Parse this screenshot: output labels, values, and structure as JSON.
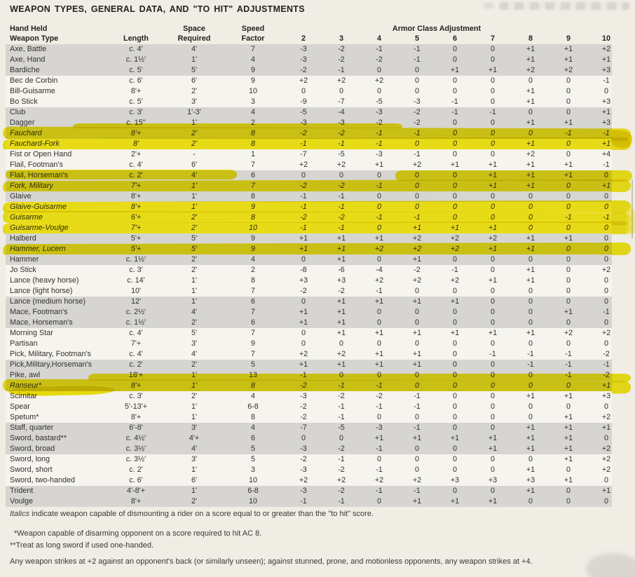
{
  "page": {
    "title": "WEAPON TYPES, GENERAL DATA, AND \"TO HIT\" ADJUSTMENTS"
  },
  "colors": {
    "page_bg": "#f0ede5",
    "shaded_row": "#d6d5d1",
    "highlighter_yellow": "#f0e40c",
    "text": "#33312c"
  },
  "table": {
    "header": {
      "hand_held": "Hand Held",
      "weapon_type": "Weapon Type",
      "length": "Length",
      "space": "Space",
      "required": "Required",
      "speed": "Speed",
      "factor": "Factor",
      "ac_group": "Armor Class Adjustment",
      "ac_values": [
        "2",
        "3",
        "4",
        "5",
        "6",
        "7",
        "8",
        "9",
        "10"
      ]
    },
    "rows": [
      {
        "name": "Axe, Battle",
        "length": "c. 4'",
        "space": "4'",
        "speed": "7",
        "ac": [
          "-3",
          "-2",
          "-1",
          "-1",
          "0",
          "0",
          "+1",
          "+1",
          "+2"
        ],
        "shaded": true,
        "italic": false,
        "hl": null
      },
      {
        "name": "Axe, Hand",
        "length": "c. 1½'",
        "space": "1'",
        "speed": "4",
        "ac": [
          "-3",
          "-2",
          "-2",
          "-1",
          "0",
          "0",
          "+1",
          "+1",
          "+1"
        ],
        "shaded": true,
        "italic": false,
        "hl": null
      },
      {
        "name": "Bardiche",
        "length": "c. 5'",
        "space": "5'",
        "speed": "9",
        "ac": [
          "-2",
          "-1",
          "0",
          "0",
          "+1",
          "+1",
          "+2",
          "+2",
          "+3"
        ],
        "shaded": true,
        "italic": false,
        "hl": null
      },
      {
        "name": "Bec de Corbin",
        "length": "c. 6'",
        "space": "6'",
        "speed": "9",
        "ac": [
          "+2",
          "+2",
          "+2",
          "0",
          "0",
          "0",
          "0",
          "0",
          "-1"
        ],
        "shaded": false,
        "italic": false,
        "hl": null
      },
      {
        "name": "Bill-Guisarme",
        "length": "8'+",
        "space": "2'",
        "speed": "10",
        "ac": [
          "0",
          "0",
          "0",
          "0",
          "0",
          "0",
          "+1",
          "0",
          "0"
        ],
        "shaded": false,
        "italic": false,
        "hl": null
      },
      {
        "name": "Bo Stick",
        "length": "c. 5'",
        "space": "3'",
        "speed": "3",
        "ac": [
          "-9",
          "-7",
          "-5",
          "-3",
          "-1",
          "0",
          "+1",
          "0",
          "+3"
        ],
        "shaded": false,
        "italic": false,
        "hl": null
      },
      {
        "name": "Club",
        "length": "c. 3'",
        "space": "1'-3'",
        "speed": "4",
        "ac": [
          "-5",
          "-4",
          "-3",
          "-2",
          "-1",
          "-1",
          "0",
          "0",
          "+1"
        ],
        "shaded": true,
        "italic": false,
        "hl": null
      },
      {
        "name": "Dagger",
        "length": "c. 15''",
        "space": "1'",
        "speed": "2",
        "ac": [
          "-3",
          "-3",
          "-2",
          "-2",
          "0",
          "0",
          "+1",
          "+1",
          "+3"
        ],
        "shaded": true,
        "italic": false,
        "hl": "partial"
      },
      {
        "name": "Fauchard",
        "length": "8'+",
        "space": "2'",
        "speed": "8",
        "ac": [
          "-2",
          "-2",
          "-1",
          "-1",
          "0",
          "0",
          "0",
          "-1",
          "-1"
        ],
        "shaded": true,
        "italic": true,
        "hl": "full"
      },
      {
        "name": "Fauchard-Fork",
        "length": "8'",
        "space": "2'",
        "speed": "8",
        "ac": [
          "-1",
          "-1",
          "-1",
          "0",
          "0",
          "0",
          "+1",
          "0",
          "+1"
        ],
        "shaded": false,
        "italic": true,
        "hl": "full"
      },
      {
        "name": "Fist or Open Hand",
        "length": "2'+",
        "space": "-",
        "speed": "1",
        "ac": [
          "-7",
          "-5",
          "-3",
          "-1",
          "0",
          "0",
          "+2",
          "0",
          "+4"
        ],
        "shaded": false,
        "italic": false,
        "hl": null
      },
      {
        "name": "Flail, Footman's",
        "length": "c. 4'",
        "space": "6'",
        "speed": "7",
        "ac": [
          "+2",
          "+2",
          "+1",
          "+2",
          "+1",
          "+1",
          "+1",
          "+1",
          "-1"
        ],
        "shaded": false,
        "italic": false,
        "hl": null
      },
      {
        "name": "Flail, Horseman's",
        "length": "c. 2'",
        "space": "4'",
        "speed": "6",
        "ac": [
          "0",
          "0",
          "0",
          "0",
          "0",
          "+1",
          "+1",
          "+1",
          "0"
        ],
        "shaded": true,
        "italic": false,
        "hl": "partial"
      },
      {
        "name": "Fork, Military",
        "length": "7'+",
        "space": "1'",
        "speed": "7",
        "ac": [
          "-2",
          "-2",
          "-1",
          "0",
          "0",
          "+1",
          "+1",
          "0",
          "+1"
        ],
        "shaded": true,
        "italic": true,
        "hl": "full"
      },
      {
        "name": "Glaive",
        "length": "8'+",
        "space": "1'",
        "speed": "8",
        "ac": [
          "-1",
          "-1",
          "0",
          "0",
          "0",
          "0",
          "0",
          "0",
          "0"
        ],
        "shaded": true,
        "italic": false,
        "hl": null
      },
      {
        "name": "Glaive-Guisarme",
        "length": "8'+",
        "space": "1'",
        "speed": "9",
        "ac": [
          "-1",
          "-1",
          "0",
          "0",
          "0",
          "0",
          "0",
          "0",
          "0"
        ],
        "shaded": false,
        "italic": true,
        "hl": "full"
      },
      {
        "name": "Guisarme",
        "length": "6'+",
        "space": "2'",
        "speed": "8",
        "ac": [
          "-2",
          "-2",
          "-1",
          "-1",
          "0",
          "0",
          "0",
          "-1",
          "-1"
        ],
        "shaded": false,
        "italic": true,
        "hl": "full"
      },
      {
        "name": "Guisarme-Voulge",
        "length": "7'+",
        "space": "2'",
        "speed": "10",
        "ac": [
          "-1",
          "-1",
          "0",
          "+1",
          "+1",
          "+1",
          "0",
          "0",
          "0"
        ],
        "shaded": false,
        "italic": true,
        "hl": "full"
      },
      {
        "name": "Halberd",
        "length": "5'+",
        "space": "5'",
        "speed": "9",
        "ac": [
          "+1",
          "+1",
          "+1",
          "+2",
          "+2",
          "+2",
          "+1",
          "+1",
          "0"
        ],
        "shaded": true,
        "italic": false,
        "hl": null
      },
      {
        "name": "Hammer, Lucern",
        "length": "5'+",
        "space": "5'",
        "speed": "9",
        "ac": [
          "+1",
          "+1",
          "+2",
          "+2",
          "+2",
          "+1",
          "+1",
          "0",
          "0"
        ],
        "shaded": true,
        "italic": true,
        "hl": "full"
      },
      {
        "name": "Hammer",
        "length": "c. 1½'",
        "space": "2'",
        "speed": "4",
        "ac": [
          "0",
          "+1",
          "0",
          "+1",
          "0",
          "0",
          "0",
          "0",
          "0"
        ],
        "shaded": true,
        "italic": false,
        "hl": null
      },
      {
        "name": "Jo Stick",
        "length": "c. 3'",
        "space": "2'",
        "speed": "2",
        "ac": [
          "-8",
          "-6",
          "-4",
          "-2",
          "-1",
          "0",
          "+1",
          "0",
          "+2"
        ],
        "shaded": false,
        "italic": false,
        "hl": null
      },
      {
        "name": "Lance (heavy horse)",
        "length": "c. 14'",
        "space": "1'",
        "speed": "8",
        "ac": [
          "+3",
          "+3",
          "+2",
          "+2",
          "+2",
          "+1",
          "+1",
          "0",
          "0"
        ],
        "shaded": false,
        "italic": false,
        "hl": null
      },
      {
        "name": "Lance (light horse)",
        "length": "10'",
        "space": "1'",
        "speed": "7",
        "ac": [
          "-2",
          "-2",
          "-1",
          "0",
          "0",
          "0",
          "0",
          "0",
          "0"
        ],
        "shaded": false,
        "italic": false,
        "hl": null
      },
      {
        "name": "Lance (medium horse)",
        "length": "12'",
        "space": "1'",
        "speed": "6",
        "ac": [
          "0",
          "+1",
          "+1",
          "+1",
          "+1",
          "0",
          "0",
          "0",
          "0"
        ],
        "shaded": true,
        "italic": false,
        "hl": null
      },
      {
        "name": "Mace, Footman's",
        "length": "c. 2½'",
        "space": "4'",
        "speed": "7",
        "ac": [
          "+1",
          "+1",
          "0",
          "0",
          "0",
          "0",
          "0",
          "+1",
          "-1"
        ],
        "shaded": true,
        "italic": false,
        "hl": null
      },
      {
        "name": "Mace, Horseman's",
        "length": "c. 1½'",
        "space": "2'",
        "speed": "6",
        "ac": [
          "+1",
          "+1",
          "0",
          "0",
          "0",
          "0",
          "0",
          "0",
          "0"
        ],
        "shaded": true,
        "italic": false,
        "hl": null
      },
      {
        "name": "Morning Star",
        "length": "c. 4'",
        "space": "5'",
        "speed": "7",
        "ac": [
          "0",
          "+1",
          "+1",
          "+1",
          "+1",
          "+1",
          "+1",
          "+2",
          "+2"
        ],
        "shaded": false,
        "italic": false,
        "hl": null
      },
      {
        "name": "Partisan",
        "length": "7'+",
        "space": "3'",
        "speed": "9",
        "ac": [
          "0",
          "0",
          "0",
          "0",
          "0",
          "0",
          "0",
          "0",
          "0"
        ],
        "shaded": false,
        "italic": false,
        "hl": null
      },
      {
        "name": "Pick, Military, Footman's",
        "length": "c. 4'",
        "space": "4'",
        "speed": "7",
        "ac": [
          "+2",
          "+2",
          "+1",
          "+1",
          "0",
          "-1",
          "-1",
          "-1",
          "-2"
        ],
        "shaded": false,
        "italic": false,
        "hl": null
      },
      {
        "name": "Pick,Military,Horseman's",
        "length": "c. 2'",
        "space": "2'",
        "speed": "5",
        "ac": [
          "+1",
          "+1",
          "+1",
          "+1",
          "0",
          "0",
          "-1",
          "-1",
          "-1"
        ],
        "shaded": true,
        "italic": false,
        "hl": null
      },
      {
        "name": "Pike, awl",
        "length": "18'+",
        "space": "1'",
        "speed": "13",
        "ac": [
          "-1",
          "0",
          "0",
          "0",
          "0",
          "0",
          "0",
          "-1",
          "-2"
        ],
        "shaded": true,
        "italic": false,
        "hl": "partial"
      },
      {
        "name": "Ranseur*",
        "length": "8'+",
        "space": "1'",
        "speed": "8",
        "ac": [
          "-2",
          "-1",
          "-1",
          "0",
          "0",
          "0",
          "0",
          "0",
          "+1"
        ],
        "shaded": true,
        "italic": true,
        "hl": "full"
      },
      {
        "name": "Scimitar",
        "length": "c. 3'",
        "space": "2'",
        "speed": "4",
        "ac": [
          "-3",
          "-2",
          "-2",
          "-1",
          "0",
          "0",
          "+1",
          "+1",
          "+3"
        ],
        "shaded": false,
        "italic": false,
        "hl": null
      },
      {
        "name": "Spear",
        "length": "5'-13'+",
        "space": "1'",
        "speed": "6-8",
        "ac": [
          "-2",
          "-1",
          "-1",
          "-1",
          "0",
          "0",
          "0",
          "0",
          "0"
        ],
        "shaded": false,
        "italic": false,
        "hl": null
      },
      {
        "name": "Spetum*",
        "length": "8'+",
        "space": "1'",
        "speed": "8",
        "ac": [
          "-2",
          "-1",
          "0",
          "0",
          "0",
          "0",
          "0",
          "+1",
          "+2"
        ],
        "shaded": false,
        "italic": false,
        "hl": null
      },
      {
        "name": "Staff, quarter",
        "length": "6'-8'",
        "space": "3'",
        "speed": "4",
        "ac": [
          "-7",
          "-5",
          "-3",
          "-1",
          "0",
          "0",
          "+1",
          "+1",
          "+1"
        ],
        "shaded": true,
        "italic": false,
        "hl": null
      },
      {
        "name": "Sword, bastard**",
        "length": "c. 4½'",
        "space": "4'+",
        "speed": "6",
        "ac": [
          "0",
          "0",
          "+1",
          "+1",
          "+1",
          "+1",
          "+1",
          "+1",
          "0"
        ],
        "shaded": true,
        "italic": false,
        "hl": null
      },
      {
        "name": "Sword, broad",
        "length": "c. 3½'",
        "space": "4'",
        "speed": "5",
        "ac": [
          "-3",
          "-2",
          "-1",
          "0",
          "0",
          "+1",
          "+1",
          "+1",
          "+2"
        ],
        "shaded": true,
        "italic": false,
        "hl": null
      },
      {
        "name": "Sword, long",
        "length": "c. 3½'",
        "space": "3'",
        "speed": "5",
        "ac": [
          "-2",
          "-1",
          "0",
          "0",
          "0",
          "0",
          "0",
          "+1",
          "+2"
        ],
        "shaded": false,
        "italic": false,
        "hl": null
      },
      {
        "name": "Sword, short",
        "length": "c. 2'",
        "space": "1'",
        "speed": "3",
        "ac": [
          "-3",
          "-2",
          "-1",
          "0",
          "0",
          "0",
          "+1",
          "0",
          "+2"
        ],
        "shaded": false,
        "italic": false,
        "hl": null
      },
      {
        "name": "Sword, two-handed",
        "length": "c. 6'",
        "space": "6'",
        "speed": "10",
        "ac": [
          "+2",
          "+2",
          "+2",
          "+2",
          "+3",
          "+3",
          "+3",
          "+1",
          "0"
        ],
        "shaded": false,
        "italic": false,
        "hl": null
      },
      {
        "name": "Trident",
        "length": "4'-8'+",
        "space": "1'",
        "speed": "6-8",
        "ac": [
          "-3",
          "-2",
          "-1",
          "-1",
          "0",
          "0",
          "+1",
          "0",
          "+1"
        ],
        "shaded": true,
        "italic": false,
        "hl": null
      },
      {
        "name": "Voulge",
        "length": "8'+",
        "space": "2'",
        "speed": "10",
        "ac": [
          "-1",
          "-1",
          "0",
          "+1",
          "+1",
          "+1",
          "0",
          "0",
          "0"
        ],
        "shaded": true,
        "italic": false,
        "hl": null
      }
    ]
  },
  "footnotes": {
    "italics_word": "Italics",
    "italics_rest": " indicate weapon capable of dismounting a rider on a score equal to or greater than the \"to hit\" score.",
    "star_note": "*Weapon capable of disarming opponent on a score required to hit AC 8.",
    "double_star_note": "**Treat as long sword if used one-handed.",
    "general_note": "Any weapon strikes at +2 against an opponent's back (or similarly unseen); against stunned, prone, and motionless opponents, any weapon strikes at +4."
  }
}
